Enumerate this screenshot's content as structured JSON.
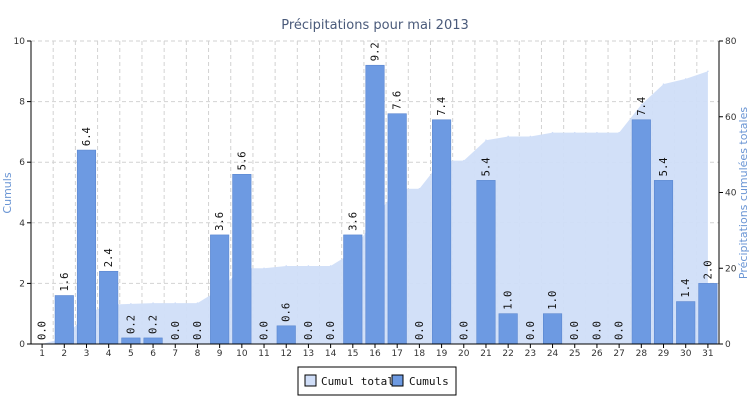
{
  "chart_data": {
    "type": "bar",
    "title": "Précipitations pour mai 2013",
    "ylabel": "Cumuls",
    "y2label": "Précipitations cumulées totales",
    "ylim": [
      0,
      10
    ],
    "y2lim": [
      0,
      80
    ],
    "yticks": [
      "0",
      "2",
      "4",
      "6",
      "8",
      "10"
    ],
    "y2ticks": [
      "0",
      "20",
      "40",
      "60",
      "80"
    ],
    "grid": true,
    "legend_position": "bottom-center",
    "categories": [
      "1",
      "2",
      "3",
      "4",
      "5",
      "6",
      "7",
      "8",
      "9",
      "10",
      "11",
      "12",
      "13",
      "14",
      "15",
      "16",
      "17",
      "18",
      "19",
      "20",
      "21",
      "22",
      "23",
      "24",
      "25",
      "26",
      "27",
      "28",
      "29",
      "30",
      "31"
    ],
    "series": [
      {
        "name": "Cumul total",
        "type": "area",
        "axis": "right",
        "color": "#d0def8",
        "values": [
          0.0,
          1.6,
          8.0,
          10.4,
          10.6,
          10.8,
          10.8,
          10.8,
          14.4,
          20.0,
          20.0,
          20.6,
          20.6,
          20.6,
          24.2,
          33.4,
          41.0,
          41.0,
          48.4,
          48.4,
          53.8,
          54.8,
          54.8,
          55.8,
          55.8,
          55.8,
          55.8,
          63.2,
          68.6,
          70.0,
          72.0
        ]
      },
      {
        "name": "Cumuls",
        "type": "bar",
        "axis": "left",
        "color": "#6d9ae2",
        "values": [
          0.0,
          1.6,
          6.4,
          2.4,
          0.2,
          0.2,
          0.0,
          0.0,
          3.6,
          5.6,
          0.0,
          0.6,
          0.0,
          0.0,
          3.6,
          9.2,
          7.6,
          0.0,
          7.4,
          0.0,
          5.4,
          1.0,
          0.0,
          1.0,
          0.0,
          0.0,
          0.0,
          7.4,
          5.4,
          1.4,
          2.0
        ],
        "labels": [
          "0.0",
          "1.6",
          "6.4",
          "2.4",
          "0.2",
          "0.2",
          "0.0",
          "0.0",
          "3.6",
          "5.6",
          "0.0",
          "0.6",
          "0.0",
          "0.0",
          "3.6",
          "9.2",
          "7.6",
          "0.0",
          "7.4",
          "0.0",
          "5.4",
          "1.0",
          "0.0",
          "1.0",
          "0.0",
          "0.0",
          "0.0",
          "7.4",
          "5.4",
          "1.4",
          "2.0"
        ]
      }
    ]
  }
}
